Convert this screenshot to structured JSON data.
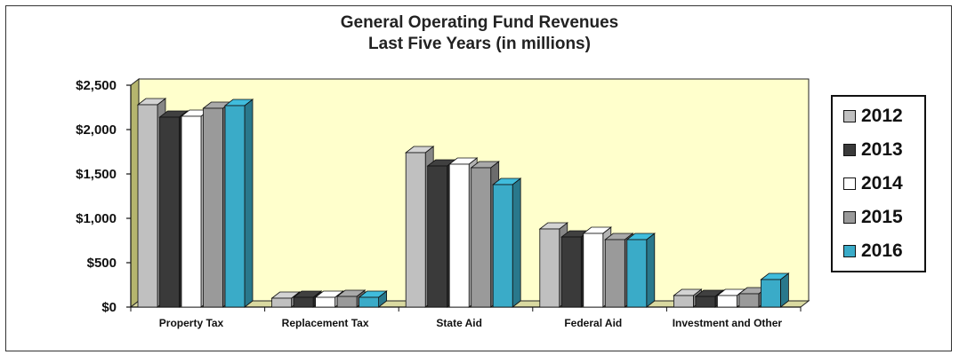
{
  "title": {
    "line1": "General Operating Fund Revenues",
    "line2": "Last Five Years (in millions)"
  },
  "chart_data": {
    "type": "bar",
    "title": "General Operating Fund Revenues Last Five Years (in millions)",
    "categories": [
      "Property Tax",
      "Replacement Tax",
      "State Aid",
      "Federal Aid",
      "Investment and Other"
    ],
    "series": [
      {
        "name": "2012",
        "color": "#c0c0c0",
        "values": [
          2280,
          100,
          1740,
          880,
          130
        ]
      },
      {
        "name": "2013",
        "color": "#3a3a3a",
        "values": [
          2140,
          110,
          1590,
          790,
          120
        ]
      },
      {
        "name": "2014",
        "color": "#ffffff",
        "values": [
          2150,
          110,
          1610,
          830,
          130
        ]
      },
      {
        "name": "2015",
        "color": "#9a9a9a",
        "values": [
          2240,
          120,
          1570,
          760,
          150
        ]
      },
      {
        "name": "2016",
        "color": "#3aabc8",
        "values": [
          2270,
          110,
          1380,
          760,
          310
        ]
      }
    ],
    "yticks": [
      "$2,500",
      "$2,000",
      "$1,500",
      "$1,000",
      "$500",
      "$0"
    ],
    "ylim": [
      0,
      2500
    ],
    "xlabel": "",
    "ylabel": "",
    "legend": "right",
    "background_color": "#ffffcc",
    "wall_color": "#b5b56e"
  }
}
